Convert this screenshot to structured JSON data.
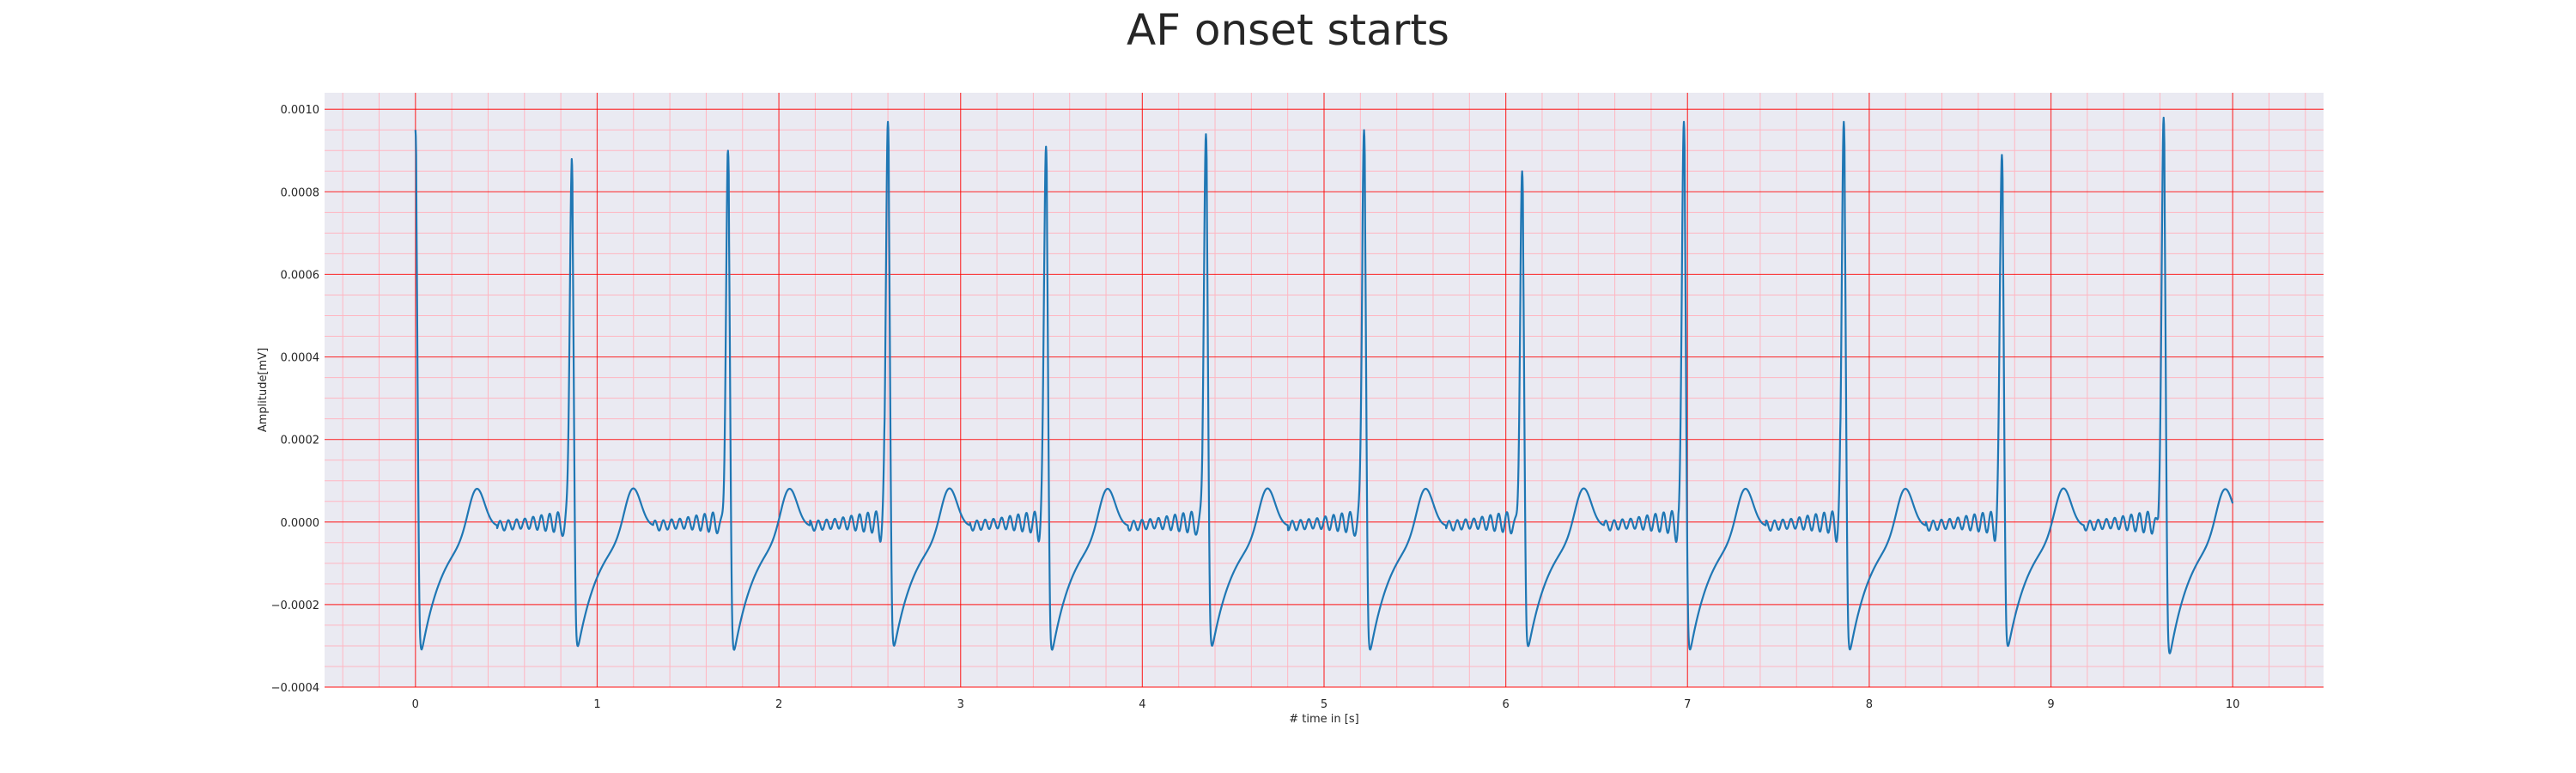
{
  "chart_data": {
    "type": "line",
    "title": "AF onset starts",
    "xlabel": "# time in [s]",
    "ylabel": "Amplitude[mV]",
    "xlim": [
      -0.5,
      10.5
    ],
    "ylim": [
      -0.0004,
      0.00104
    ],
    "x_ticks": [
      0,
      1,
      2,
      3,
      4,
      5,
      6,
      7,
      8,
      9,
      10
    ],
    "x_tick_labels": [
      "0",
      "1",
      "2",
      "3",
      "4",
      "5",
      "6",
      "7",
      "8",
      "9",
      "10"
    ],
    "y_ticks": [
      -0.0004,
      -0.0002,
      0.0,
      0.0002,
      0.0004,
      0.0006,
      0.0008,
      0.001
    ],
    "y_tick_labels": [
      "−0.0004",
      "−0.0002",
      "0.0000",
      "0.0002",
      "0.0004",
      "0.0006",
      "0.0008",
      "0.0010"
    ],
    "grid": "major and minor",
    "colors": {
      "line": "#1f77b4",
      "plot_background": "#eaeaf2",
      "major_grid": "#ff0000",
      "minor_grid": "#ffb6c1",
      "text": "#262626"
    },
    "series": [
      {
        "beats": [
          {
            "t": 0.0,
            "peak": 0.00095,
            "trough": -0.00034
          },
          {
            "t": 0.86,
            "peak": 0.00088,
            "trough": -0.00033
          },
          {
            "t": 1.72,
            "peak": 0.0009,
            "trough": -0.00034
          },
          {
            "t": 2.6,
            "peak": 0.00097,
            "trough": -0.00033
          },
          {
            "t": 3.47,
            "peak": 0.00091,
            "trough": -0.00034
          },
          {
            "t": 4.35,
            "peak": 0.00094,
            "trough": -0.00033
          },
          {
            "t": 5.22,
            "peak": 0.00095,
            "trough": -0.00034
          },
          {
            "t": 6.09,
            "peak": 0.00085,
            "trough": -0.00033
          },
          {
            "t": 6.98,
            "peak": 0.00097,
            "trough": -0.00034
          },
          {
            "t": 7.86,
            "peak": 0.00097,
            "trough": -0.00034
          },
          {
            "t": 8.73,
            "peak": 0.00089,
            "trough": -0.00033
          },
          {
            "t": 9.62,
            "peak": 0.00098,
            "trough": -0.00035
          }
        ],
        "t_wave_peak": 0.00011,
        "t_end": 10.0,
        "t_end_value": 7e-05
      }
    ]
  }
}
